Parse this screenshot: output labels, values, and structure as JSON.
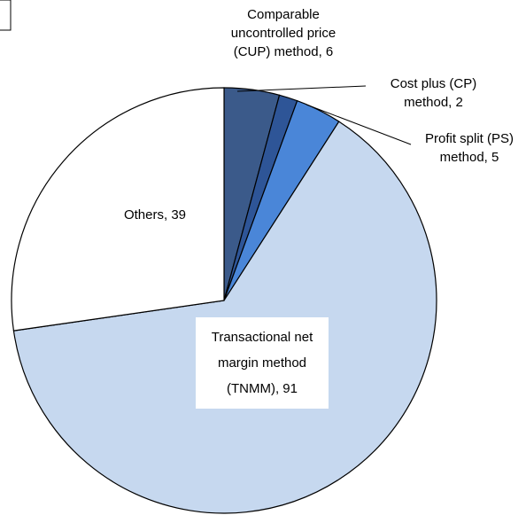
{
  "chart_data": {
    "type": "pie",
    "values": [
      6,
      2,
      5,
      91,
      39
    ],
    "value_labels": [
      "Comparable uncontrolled price (CUP) method, 6",
      "Cost plus (CP) method, 2",
      "Profit split (PS) method, 5",
      "Transactional net margin method (TNMM), 91",
      "Others, 39"
    ],
    "colors": [
      "#3b5a8a",
      "#2e5597",
      "#4a86d8",
      "#c6d8ef",
      "#ffffff"
    ]
  }
}
